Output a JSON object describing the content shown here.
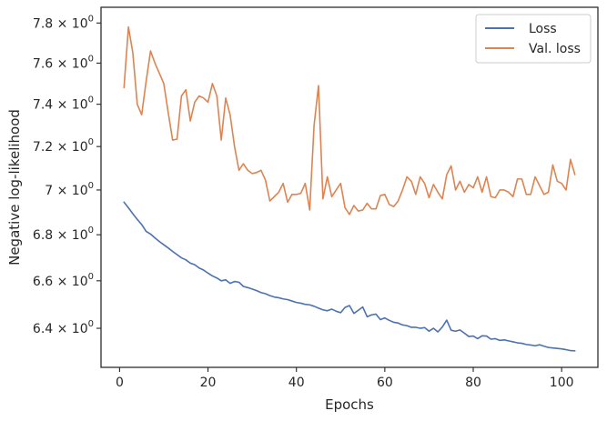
{
  "chart_data": {
    "type": "line",
    "title": "",
    "xlabel": "Epochs",
    "ylabel": "Negative log-likelihood",
    "xlim": [
      -4.2,
      108.2
    ],
    "ylim": [
      6.24,
      7.88
    ],
    "yscale": "log",
    "grid": false,
    "legend_position": "top-right",
    "x_ticks": [
      0,
      20,
      40,
      60,
      80,
      100
    ],
    "x_tick_labels": [
      "0",
      "20",
      "40",
      "60",
      "80",
      "100"
    ],
    "y_ticks": [
      6.4,
      6.6,
      6.8,
      7.0,
      7.2,
      7.4,
      7.6,
      7.8
    ],
    "y_tick_labels": [
      {
        "mantissa": "6.4",
        "base": "10",
        "exp": "0"
      },
      {
        "mantissa": "6.6",
        "base": "10",
        "exp": "0"
      },
      {
        "mantissa": "6.8",
        "base": "10",
        "exp": "0"
      },
      {
        "mantissa": "7",
        "base": "10",
        "exp": "0"
      },
      {
        "mantissa": "7.2",
        "base": "10",
        "exp": "0"
      },
      {
        "mantissa": "7.4",
        "base": "10",
        "exp": "0"
      },
      {
        "mantissa": "7.6",
        "base": "10",
        "exp": "0"
      },
      {
        "mantissa": "7.8",
        "base": "10",
        "exp": "0"
      }
    ],
    "series": [
      {
        "name": "Loss",
        "color": "#4c72b0",
        "x_start": 1,
        "values": [
          6.945,
          6.92,
          6.893,
          6.868,
          6.845,
          6.815,
          6.803,
          6.786,
          6.77,
          6.756,
          6.742,
          6.727,
          6.713,
          6.699,
          6.69,
          6.676,
          6.669,
          6.655,
          6.646,
          6.633,
          6.621,
          6.612,
          6.6,
          6.604,
          6.589,
          6.597,
          6.594,
          6.576,
          6.571,
          6.565,
          6.558,
          6.55,
          6.545,
          6.537,
          6.531,
          6.528,
          6.523,
          6.52,
          6.514,
          6.508,
          6.505,
          6.5,
          6.498,
          6.492,
          6.484,
          6.477,
          6.473,
          6.48,
          6.471,
          6.465,
          6.487,
          6.495,
          6.462,
          6.475,
          6.489,
          6.448,
          6.456,
          6.459,
          6.436,
          6.443,
          6.433,
          6.425,
          6.422,
          6.414,
          6.411,
          6.404,
          6.404,
          6.4,
          6.403,
          6.388,
          6.4,
          6.385,
          6.405,
          6.434,
          6.392,
          6.388,
          6.393,
          6.38,
          6.366,
          6.368,
          6.357,
          6.369,
          6.368,
          6.355,
          6.357,
          6.35,
          6.352,
          6.348,
          6.344,
          6.34,
          6.338,
          6.333,
          6.331,
          6.328,
          6.332,
          6.326,
          6.321,
          6.319,
          6.317,
          6.315,
          6.312,
          6.308,
          6.307
        ]
      },
      {
        "name": "Val. loss",
        "color": "#dd8452",
        "x_start": 1,
        "values": [
          7.48,
          7.78,
          7.65,
          7.4,
          7.35,
          7.51,
          7.66,
          7.6,
          7.55,
          7.5,
          7.36,
          7.23,
          7.235,
          7.44,
          7.47,
          7.32,
          7.41,
          7.44,
          7.43,
          7.41,
          7.5,
          7.44,
          7.23,
          7.43,
          7.35,
          7.2,
          7.09,
          7.12,
          7.09,
          7.075,
          7.08,
          7.09,
          7.045,
          6.95,
          6.97,
          6.99,
          7.03,
          6.945,
          6.98,
          6.98,
          6.985,
          7.03,
          6.91,
          7.3,
          7.49,
          6.96,
          7.06,
          6.97,
          7.0,
          7.03,
          6.92,
          6.89,
          6.93,
          6.905,
          6.91,
          6.94,
          6.915,
          6.915,
          6.975,
          6.98,
          6.935,
          6.925,
          6.95,
          7.0,
          7.06,
          7.04,
          6.98,
          7.06,
          7.03,
          6.965,
          7.025,
          6.99,
          6.96,
          7.07,
          7.11,
          7.0,
          7.04,
          6.99,
          7.025,
          7.01,
          7.06,
          6.99,
          7.06,
          6.97,
          6.965,
          7.0,
          7.0,
          6.99,
          6.97,
          7.05,
          7.05,
          6.98,
          6.98,
          7.06,
          7.02,
          6.98,
          6.99,
          7.115,
          7.04,
          7.03,
          7.0,
          7.14,
          7.07
        ]
      }
    ]
  }
}
